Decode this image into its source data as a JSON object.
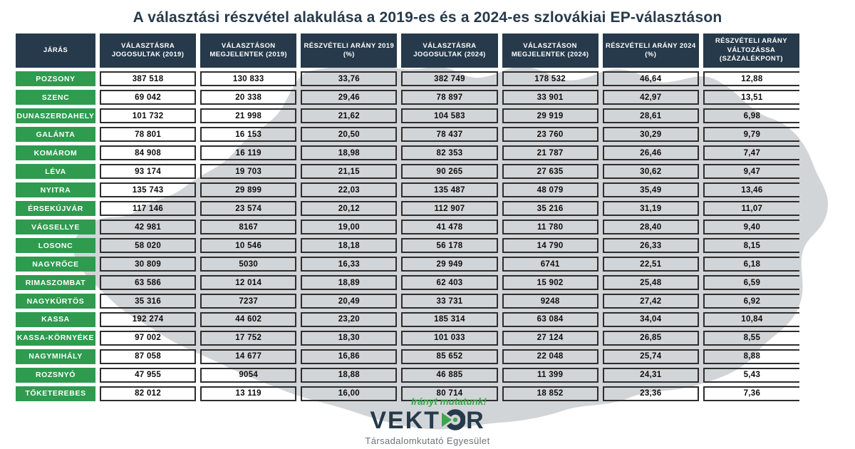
{
  "title": "A választási részvétel alakulása a 2019-es és a 2024-es szlovákiai EP-választáson",
  "chart_data": {
    "type": "table",
    "title": "A választási részvétel alakulása a 2019-es és a 2024-es szlovákiai EP-választáson",
    "columns": [
      "JÁRÁS",
      "VÁLASZTÁSRA JOGOSULTAK (2019)",
      "VÁLASZTÁSON MEGJELENTEK (2019)",
      "RÉSZVÉTELI ARÁNY 2019 (%)",
      "VÁLASZTÁSRA JOGOSULTAK (2024)",
      "VÁLASZTÁSON MEGJELENTEK (2024)",
      "RÉSZVÉTELI ARÁNY 2024 (%)",
      "RÉSZVÉTELI ARÁNY VÁLTOZÁSSA (SZÁZALÉKPONT)"
    ],
    "rows": [
      [
        "POZSONY",
        "387 518",
        "130 833",
        "33,76",
        "382 749",
        "178 532",
        "46,64",
        "12,88"
      ],
      [
        "SZENC",
        "69 042",
        "20 338",
        "29,46",
        "78 897",
        "33 901",
        "42,97",
        "13,51"
      ],
      [
        "DUNASZERDAHELY",
        "101 732",
        "21 998",
        "21,62",
        "104 583",
        "29 919",
        "28,61",
        "6,98"
      ],
      [
        "GALÁNTA",
        "78 801",
        "16 153",
        "20,50",
        "78 437",
        "23 760",
        "30,29",
        "9,79"
      ],
      [
        "KOMÁROM",
        "84 908",
        "16 119",
        "18,98",
        "82 353",
        "21 787",
        "26,46",
        "7,47"
      ],
      [
        "LÉVA",
        "93 174",
        "19 703",
        "21,15",
        "90 265",
        "27 635",
        "30,62",
        "9,47"
      ],
      [
        "NYITRA",
        "135 743",
        "29 899",
        "22,03",
        "135 487",
        "48 079",
        "35,49",
        "13,46"
      ],
      [
        "ÉRSEKÚJVÁR",
        "117 146",
        "23 574",
        "20,12",
        "112 907",
        "35 216",
        "31,19",
        "11,07"
      ],
      [
        "VÁGSELLYE",
        "42 981",
        "8167",
        "19,00",
        "41 478",
        "11 780",
        "28,40",
        "9,40"
      ],
      [
        "LOSONC",
        "58 020",
        "10 546",
        "18,18",
        "56 178",
        "14 790",
        "26,33",
        "8,15"
      ],
      [
        "NAGYRŐCE",
        "30 809",
        "5030",
        "16,33",
        "29 949",
        "6741",
        "22,51",
        "6,18"
      ],
      [
        "RIMASZOMBAT",
        "63 586",
        "12 014",
        "18,89",
        "62 403",
        "15 902",
        "25,48",
        "6,59"
      ],
      [
        "NAGYKÜRTÖS",
        "35 316",
        "7237",
        "20,49",
        "33 731",
        "9248",
        "27,42",
        "6,92"
      ],
      [
        "KASSA",
        "192 274",
        "44 602",
        "23,20",
        "185 314",
        "63 084",
        "34,04",
        "10,84"
      ],
      [
        "KASSA-KÖRNYÉKE",
        "97 002",
        "17 752",
        "18,30",
        "101 033",
        "27 124",
        "26,85",
        "8,55"
      ],
      [
        "NAGYMIHÁLY",
        "87 058",
        "14 677",
        "16,86",
        "85 652",
        "22 048",
        "25,74",
        "8,88"
      ],
      [
        "ROZSNYÓ",
        "47 955",
        "9054",
        "18,88",
        "46 885",
        "11 399",
        "24,31",
        "5,43"
      ],
      [
        "TŐKETEREBES",
        "82 012",
        "13 119",
        "16,00",
        "80 714",
        "18 852",
        "23,36",
        "7,36"
      ]
    ]
  },
  "footer": {
    "tagline": "Irányt mutatunk!",
    "brand_prefix": "VEKT",
    "brand_suffix": "R",
    "subtitle": "Társadalomkutató Egyesület"
  },
  "colors": {
    "navy": "#263A4B",
    "green": "#2E9B4F",
    "accent_green": "#3BA64A",
    "map_gray": "#D2D5D8",
    "cell_border": "#2D2D2D",
    "subtitle_gray": "#6D7278"
  }
}
